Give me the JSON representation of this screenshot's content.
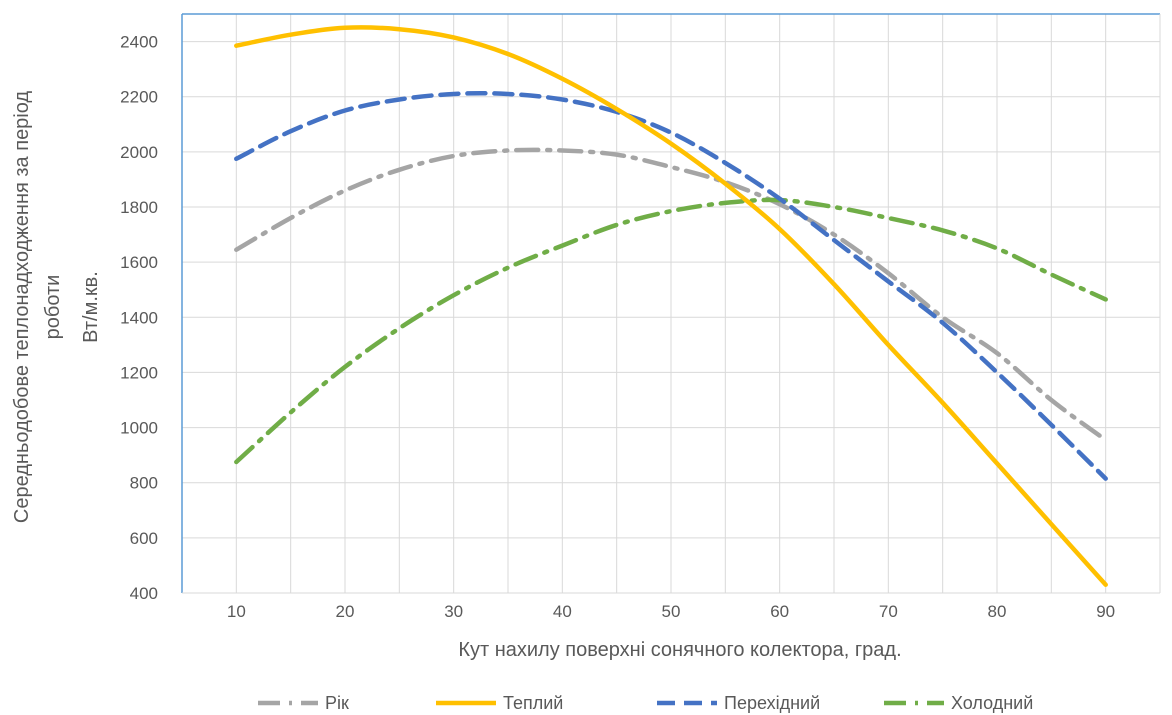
{
  "chart_data": {
    "type": "line",
    "xlabel": "Кут нахилу поверхні сонячного колектора, град.",
    "ylabel_lines": [
      "Середньодобове теплонадходження за період",
      "роботи",
      "Вт/м.кв."
    ],
    "x": [
      10,
      15,
      20,
      25,
      30,
      35,
      40,
      45,
      50,
      55,
      60,
      65,
      70,
      75,
      80,
      85,
      90
    ],
    "xticks": [
      10,
      20,
      30,
      40,
      50,
      60,
      70,
      80,
      90
    ],
    "xlim": [
      5,
      95
    ],
    "ylim": [
      400,
      2500
    ],
    "yticks": [
      400,
      600,
      800,
      1000,
      1200,
      1400,
      1600,
      1800,
      2000,
      2200,
      2400
    ],
    "grid": true,
    "legend_position": "bottom",
    "series": [
      {
        "name": "Рік",
        "color": "#A5A5A5",
        "style": "dash-dot",
        "values": [
          1645,
          1760,
          1860,
          1935,
          1985,
          2005,
          2005,
          1990,
          1945,
          1890,
          1810,
          1700,
          1560,
          1400,
          1270,
          1100,
          955
        ]
      },
      {
        "name": "Теплий",
        "color": "#FFC000",
        "style": "solid",
        "values": [
          2385,
          2425,
          2450,
          2445,
          2415,
          2355,
          2265,
          2155,
          2030,
          1885,
          1720,
          1520,
          1300,
          1090,
          870,
          650,
          430
        ]
      },
      {
        "name": "Перехідний",
        "color": "#4472C4",
        "style": "dash",
        "values": [
          1975,
          2075,
          2150,
          2190,
          2210,
          2210,
          2190,
          2145,
          2070,
          1960,
          1830,
          1680,
          1530,
          1380,
          1200,
          1010,
          815
        ]
      },
      {
        "name": "Холодний",
        "color": "#70AD47",
        "style": "dash-dot",
        "values": [
          875,
          1055,
          1220,
          1360,
          1480,
          1580,
          1660,
          1735,
          1785,
          1815,
          1825,
          1800,
          1760,
          1715,
          1650,
          1555,
          1465
        ]
      }
    ]
  }
}
